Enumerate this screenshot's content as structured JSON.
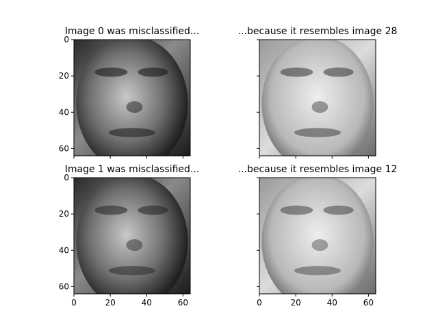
{
  "chart_data": [
    {
      "type": "image",
      "title": "Image 0 was misclassified...",
      "colormap": "gray",
      "image_extent": [
        64,
        64
      ],
      "xlim": [
        0,
        64
      ],
      "ylim": [
        64,
        0
      ],
      "xticks": [
        0,
        20,
        40,
        60
      ],
      "yticks": [
        0,
        20,
        40,
        60
      ],
      "show_xtick_labels": false,
      "show_ytick_labels": true
    },
    {
      "type": "image",
      "title": "...because it resembles image 28",
      "colormap": "gray",
      "image_extent": [
        64,
        64
      ],
      "xlim": [
        0,
        64
      ],
      "ylim": [
        64,
        0
      ],
      "xticks": [
        0,
        20,
        40,
        60
      ],
      "yticks": [
        0,
        20,
        40,
        60
      ],
      "show_xtick_labels": false,
      "show_ytick_labels": false
    },
    {
      "type": "image",
      "title": "Image 1 was misclassified...",
      "colormap": "gray",
      "image_extent": [
        64,
        64
      ],
      "xlim": [
        0,
        64
      ],
      "ylim": [
        64,
        0
      ],
      "xticks": [
        0,
        20,
        40,
        60
      ],
      "yticks": [
        0,
        20,
        40,
        60
      ],
      "show_xtick_labels": true,
      "show_ytick_labels": true
    },
    {
      "type": "image",
      "title": "...because it resembles image 12",
      "colormap": "gray",
      "image_extent": [
        64,
        64
      ],
      "xlim": [
        0,
        64
      ],
      "ylim": [
        64,
        0
      ],
      "xticks": [
        0,
        20,
        40,
        60
      ],
      "yticks": [
        0,
        20,
        40,
        60
      ],
      "show_xtick_labels": true,
      "show_ytick_labels": false
    }
  ]
}
